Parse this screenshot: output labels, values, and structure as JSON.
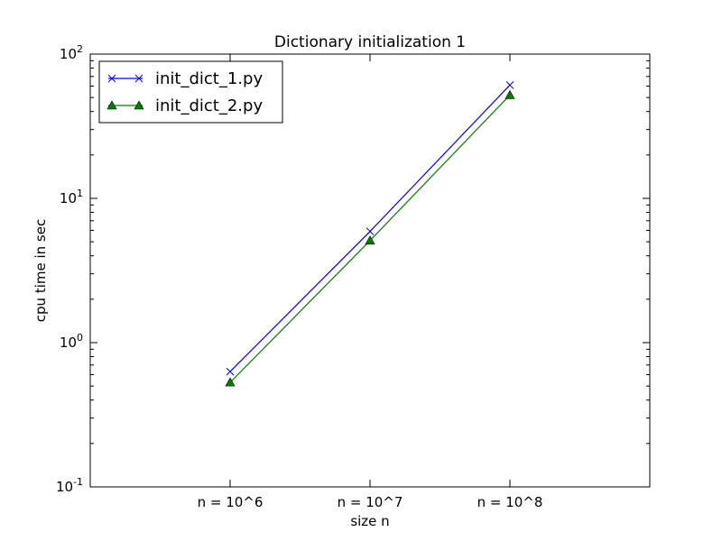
{
  "chart_data": {
    "type": "line",
    "title": "Dictionary initialization 1",
    "xlabel": "size n",
    "ylabel": "cpu time in sec",
    "yscale": "log",
    "ylim": [
      0.1,
      100
    ],
    "yticks": [
      {
        "value": 0.1,
        "base": "10",
        "exp": "-1"
      },
      {
        "value": 1,
        "base": "10",
        "exp": "0"
      },
      {
        "value": 10,
        "base": "10",
        "exp": "1"
      },
      {
        "value": 100,
        "base": "10",
        "exp": "2"
      }
    ],
    "categories": [
      "n = 10^6",
      "n = 10^7",
      "n = 10^8"
    ],
    "grid": false,
    "legend": "top-left",
    "series": [
      {
        "name": "init_dict_1.py",
        "values": [
          0.63,
          5.9,
          61
        ],
        "color": "#0000ff",
        "marker": "x"
      },
      {
        "name": "init_dict_2.py",
        "values": [
          0.53,
          5.1,
          52
        ],
        "color": "#007f00",
        "marker": "triangle"
      }
    ]
  }
}
